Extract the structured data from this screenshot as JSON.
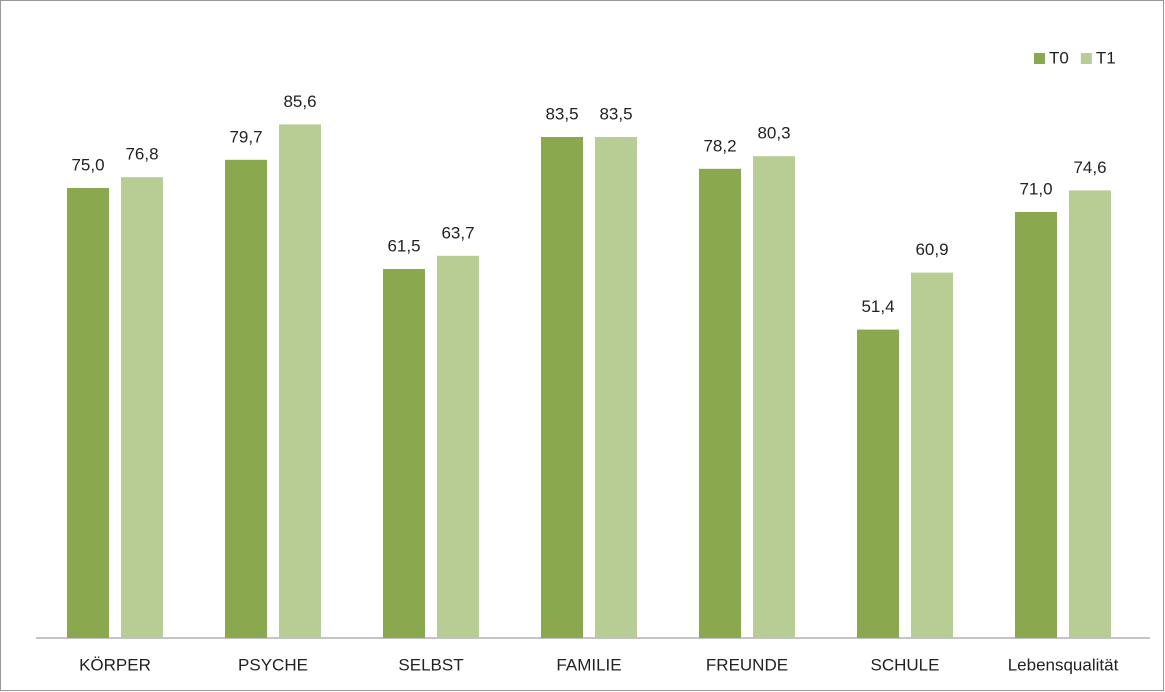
{
  "chart_data": {
    "type": "bar",
    "categories": [
      "KÖRPER",
      "PSYCHE",
      "SELBST",
      "FAMILIE",
      "FREUNDE",
      "SCHULE",
      "Lebensqualität"
    ],
    "series": [
      {
        "name": "T0",
        "color": "#8aa84e",
        "values": [
          75.0,
          79.7,
          61.5,
          83.5,
          78.2,
          51.4,
          71.0
        ],
        "value_labels": [
          "75,0",
          "79,7",
          "61,5",
          "83,5",
          "78,2",
          "51,4",
          "71,0"
        ]
      },
      {
        "name": "T1",
        "color": "#b7cd93",
        "values": [
          76.8,
          85.6,
          63.7,
          83.5,
          80.3,
          60.9,
          74.6
        ],
        "value_labels": [
          "76,8",
          "85,6",
          "63,7",
          "83,5",
          "80,3",
          "60,9",
          "74,6"
        ]
      }
    ],
    "ylim": [
      0,
      100
    ],
    "legend": "top-right"
  }
}
